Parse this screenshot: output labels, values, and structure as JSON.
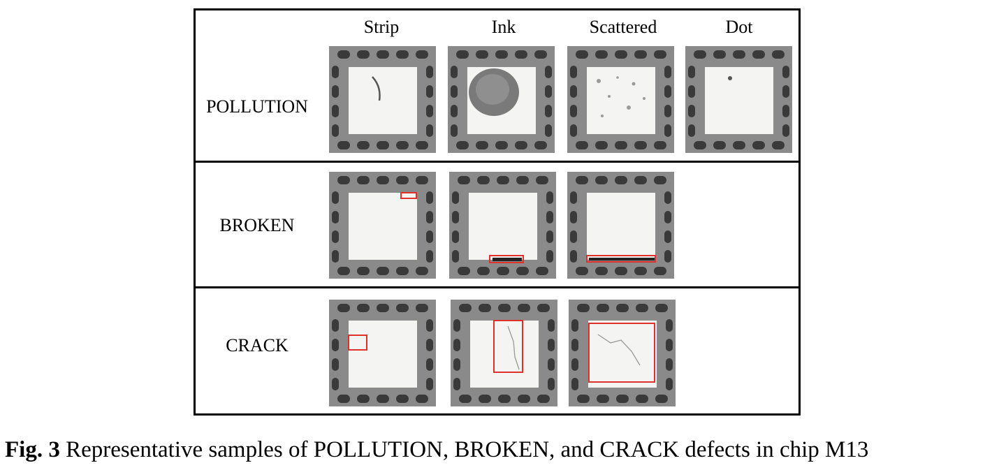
{
  "figure": {
    "columns": [
      "Strip",
      "Ink",
      "Scattered",
      "Dot"
    ],
    "rows": [
      {
        "label": "POLLUTION",
        "samples": [
          "Strip",
          "Ink",
          "Scattered",
          "Dot"
        ]
      },
      {
        "label": "BROKEN",
        "samples": [
          "Strip",
          "Ink",
          "Scattered"
        ]
      },
      {
        "label": "CRACK",
        "samples": [
          "Strip",
          "Ink",
          "Scattered"
        ]
      }
    ]
  },
  "caption": {
    "label": "Fig. 3",
    "text": " Representative samples of POLLUTION, BROKEN, and CRACK defects in chip M13"
  },
  "colors": {
    "substrate": "#8a8a8a",
    "pad": "#3a3a3a",
    "chip": "#f4f4f2",
    "highlight_box": "#e0302a"
  }
}
